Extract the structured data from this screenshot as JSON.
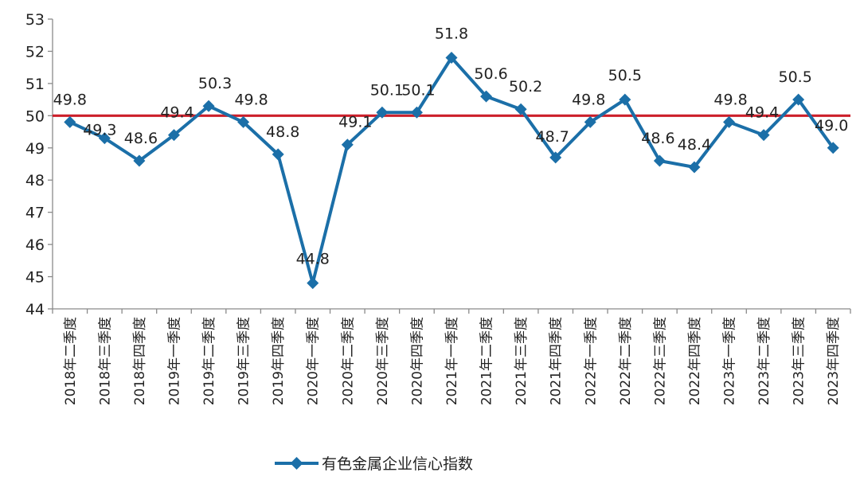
{
  "chart_data": {
    "type": "line",
    "title": "",
    "xlabel": "",
    "ylabel": "",
    "ylim": [
      44,
      53
    ],
    "yticks": [
      44,
      45,
      46,
      47,
      48,
      49,
      50,
      51,
      52,
      53
    ],
    "reference_line": {
      "value": 50,
      "color": "#cc1f2a"
    },
    "categories": [
      "2018年二季度",
      "2018年三季度",
      "2018年四季度",
      "2019年一季度",
      "2019年二季度",
      "2019年三季度",
      "2019年四季度",
      "2020年一季度",
      "2020年二季度",
      "2020年三季度",
      "2020年四季度",
      "2021年一季度",
      "2021年二季度",
      "2021年三季度",
      "2021年四季度",
      "2022年一季度",
      "2022年二季度",
      "2022年三季度",
      "2022年四季度",
      "2023年一季度",
      "2023年二季度",
      "2023年三季度",
      "2023年四季度"
    ],
    "series": [
      {
        "name": "有色金属企业信心指数",
        "color": "#1b6fa8",
        "marker": "diamond",
        "values": [
          49.8,
          49.3,
          48.6,
          49.4,
          50.3,
          49.8,
          48.8,
          44.8,
          49.1,
          50.1,
          50.1,
          51.8,
          50.6,
          50.2,
          48.7,
          49.8,
          50.5,
          48.6,
          48.4,
          49.8,
          49.4,
          50.5,
          49.0
        ]
      }
    ],
    "legend": {
      "position": "bottom-center"
    }
  }
}
